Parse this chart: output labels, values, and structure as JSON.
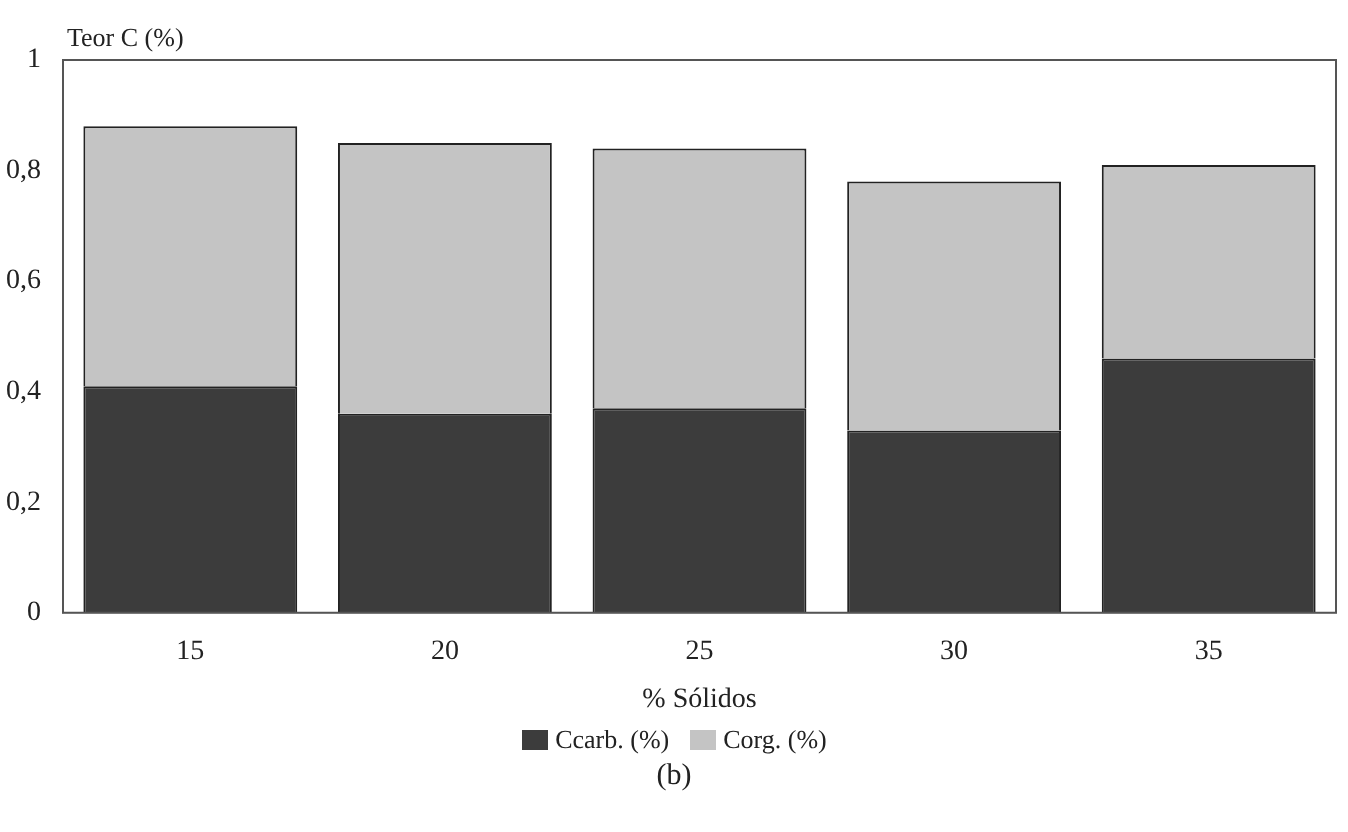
{
  "chart_data": {
    "type": "bar",
    "stacked": true,
    "ylabel": "Teor C (%)",
    "xlabel": "% Sólidos",
    "categories": [
      "15",
      "20",
      "25",
      "30",
      "35"
    ],
    "series": [
      {
        "name": "Ccarb. (%)",
        "color": "#3c3c3c",
        "values": [
          0.41,
          0.36,
          0.37,
          0.33,
          0.46
        ]
      },
      {
        "name": "Corg. (%)",
        "color": "#c4c4c4",
        "values": [
          0.47,
          0.49,
          0.47,
          0.45,
          0.35
        ]
      }
    ],
    "ylim": [
      0,
      1
    ],
    "yticks": [
      0,
      {
        "value": 0.2,
        "label": "0,2"
      },
      {
        "value": 0.4,
        "label": "0,4"
      },
      {
        "value": 0.6,
        "label": "0,6"
      },
      {
        "value": 0.8,
        "label": "0,8"
      },
      1
    ],
    "grid": false,
    "legend": "bottom",
    "annotations": [
      "(b)"
    ]
  }
}
